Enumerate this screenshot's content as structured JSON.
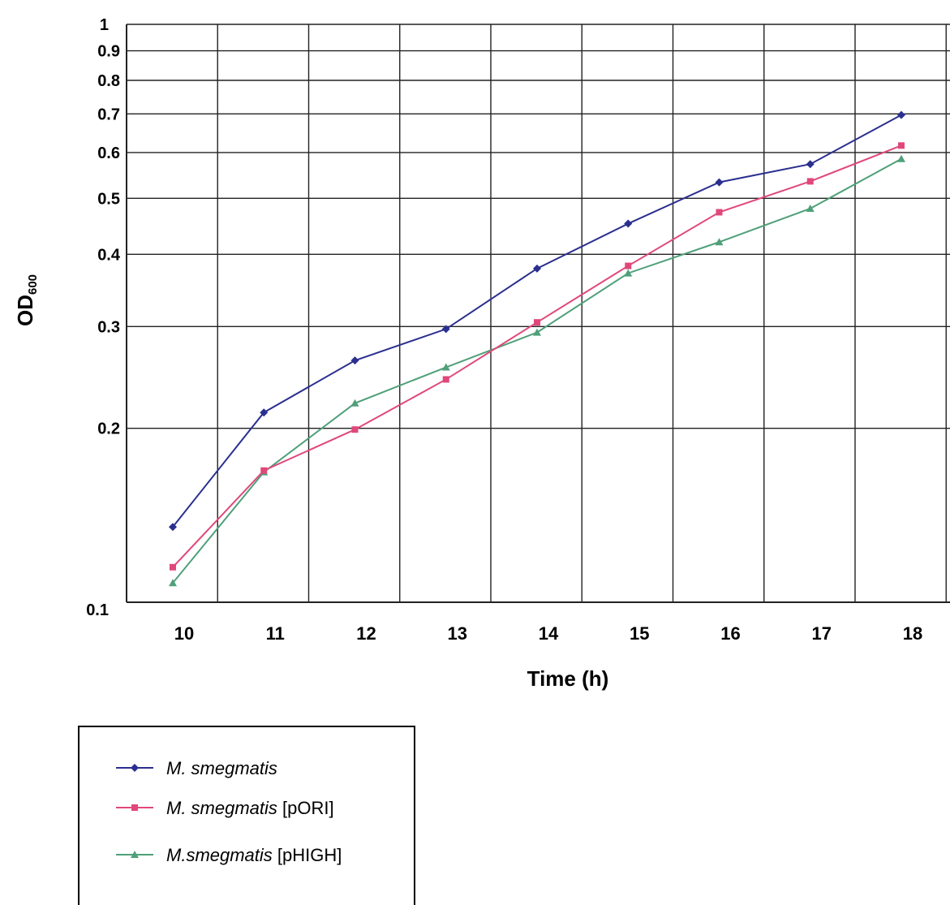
{
  "chart_data": {
    "type": "line",
    "title": "",
    "xlabel": "Time (h)",
    "ylabel": {
      "main": "OD",
      "sub": "600"
    },
    "y_scale": "log",
    "ylim": [
      0.1,
      1
    ],
    "xlim": [
      9.5,
      18.5
    ],
    "grid": true,
    "legend_placement": "bottom-left",
    "x": [
      10,
      11,
      12,
      13,
      14,
      15,
      16,
      17,
      18
    ],
    "x_tick_labels": [
      "10",
      "11",
      "12",
      "13",
      "14",
      "15",
      "16",
      "17",
      "18"
    ],
    "y_ticks": [
      {
        "value": 0.1,
        "label": "0.1"
      },
      {
        "value": 0.2,
        "label": "0.2"
      },
      {
        "value": 0.3,
        "label": "0.3"
      },
      {
        "value": 0.4,
        "label": "0.4"
      },
      {
        "value": 0.5,
        "label": "0.5"
      },
      {
        "value": 0.6,
        "label": "0.6"
      },
      {
        "value": 0.7,
        "label": "0.7"
      },
      {
        "value": 0.8,
        "label": "0.8"
      },
      {
        "value": 0.9,
        "label": "0.9"
      },
      {
        "value": 1,
        "label": "1"
      }
    ],
    "series": [
      {
        "name_italic": "M. smegmatis",
        "name_suffix": "",
        "color": "#2b2f8f",
        "marker": "diamond",
        "values": [
          0.135,
          0.213,
          0.262,
          0.297,
          0.378,
          0.452,
          0.533,
          0.573,
          0.697
        ]
      },
      {
        "name_italic": "M. smegmatis",
        "name_suffix": " [pORI]",
        "color": "#e0487a",
        "marker": "square",
        "values": [
          0.115,
          0.169,
          0.199,
          0.243,
          0.305,
          0.382,
          0.473,
          0.535,
          0.617
        ]
      },
      {
        "name_italic": "M.smegmatis",
        "name_suffix": " [pHIGH]",
        "color": "#4fa07a",
        "marker": "triangle",
        "values": [
          0.108,
          0.168,
          0.221,
          0.255,
          0.293,
          0.371,
          0.42,
          0.48,
          0.585
        ]
      }
    ]
  }
}
